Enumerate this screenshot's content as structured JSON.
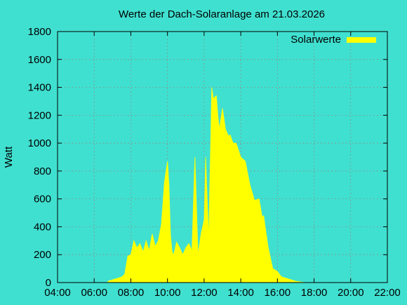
{
  "chart_data": {
    "type": "area",
    "title": "Werte der Dach-Solaranlage am 21.03.2026",
    "xlabel": "",
    "ylabel": "Watt",
    "x_tick_labels": [
      "04:00",
      "06:00",
      "08:00",
      "10:00",
      "12:00",
      "14:00",
      "16:00",
      "18:00",
      "20:00",
      "22:00"
    ],
    "x_tick_hours": [
      4,
      6,
      8,
      10,
      12,
      14,
      16,
      18,
      20,
      22
    ],
    "xlim": [
      "04:00",
      "22:00"
    ],
    "ylim": [
      0,
      1800
    ],
    "y_ticks": [
      0,
      200,
      400,
      600,
      800,
      1000,
      1200,
      1400,
      1600,
      1800
    ],
    "grid": true,
    "legend_position": "top-right",
    "colors": {
      "background": "#40e0d0",
      "series": "#ffff00"
    },
    "series": [
      {
        "name": "Solarwerte",
        "x": [
          "06:45",
          "07:00",
          "07:15",
          "07:30",
          "07:40",
          "07:50",
          "08:00",
          "08:10",
          "08:20",
          "08:30",
          "08:40",
          "08:50",
          "09:00",
          "09:10",
          "09:20",
          "09:30",
          "09:40",
          "09:50",
          "10:00",
          "10:05",
          "10:10",
          "10:15",
          "10:20",
          "10:30",
          "10:40",
          "10:50",
          "11:00",
          "11:10",
          "11:20",
          "11:30",
          "11:40",
          "11:50",
          "11:55",
          "12:00",
          "12:05",
          "12:15",
          "12:25",
          "12:30",
          "12:40",
          "12:45",
          "12:50",
          "13:00",
          "13:10",
          "13:20",
          "13:25",
          "13:35",
          "13:45",
          "14:00",
          "14:15",
          "14:30",
          "14:45",
          "15:00",
          "15:10",
          "15:15",
          "15:20",
          "15:30",
          "15:40",
          "15:45",
          "16:00",
          "16:10",
          "16:15",
          "16:30",
          "16:45",
          "17:00",
          "17:15",
          "17:30",
          "17:45",
          "18:00",
          "18:05"
        ],
        "y": [
          10,
          20,
          30,
          40,
          60,
          190,
          200,
          300,
          250,
          280,
          220,
          300,
          230,
          350,
          260,
          300,
          420,
          720,
          870,
          700,
          340,
          220,
          200,
          290,
          250,
          200,
          250,
          280,
          230,
          900,
          200,
          350,
          400,
          450,
          900,
          310,
          1400,
          1320,
          1340,
          1200,
          1100,
          1250,
          1100,
          1050,
          1060,
          1000,
          1000,
          900,
          870,
          700,
          590,
          600,
          470,
          480,
          400,
          250,
          150,
          100,
          80,
          50,
          40,
          30,
          20,
          10,
          5,
          0,
          0,
          0,
          0
        ]
      }
    ]
  }
}
